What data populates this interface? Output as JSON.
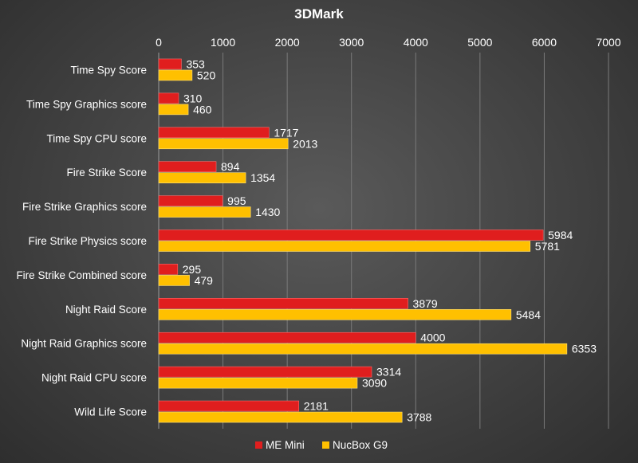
{
  "chart_data": {
    "type": "bar",
    "orientation": "horizontal",
    "title": "3DMark",
    "xlim": [
      0,
      7000
    ],
    "xticks": [
      0,
      1000,
      2000,
      3000,
      4000,
      5000,
      6000,
      7000
    ],
    "xaxis_position": "top",
    "grid": true,
    "legend_position": "bottom",
    "categories": [
      "Time Spy Score",
      "Time Spy Graphics score",
      "Time Spy CPU score",
      "Fire Strike Score",
      "Fire Strike Graphics score",
      "Fire Strike Physics score",
      "Fire Strike Combined score",
      "Night Raid Score",
      "Night Raid Graphics score",
      "Night Raid CPU score",
      "Wild Life Score"
    ],
    "series": [
      {
        "name": "ME Mini",
        "color": "#e01e1e",
        "values": [
          353,
          310,
          1717,
          894,
          995,
          5984,
          295,
          3879,
          4000,
          3314,
          2181
        ]
      },
      {
        "name": "NucBox G9",
        "color": "#ffc000",
        "values": [
          520,
          460,
          2013,
          1354,
          1430,
          5781,
          479,
          5484,
          6353,
          3090,
          3788
        ]
      }
    ]
  }
}
